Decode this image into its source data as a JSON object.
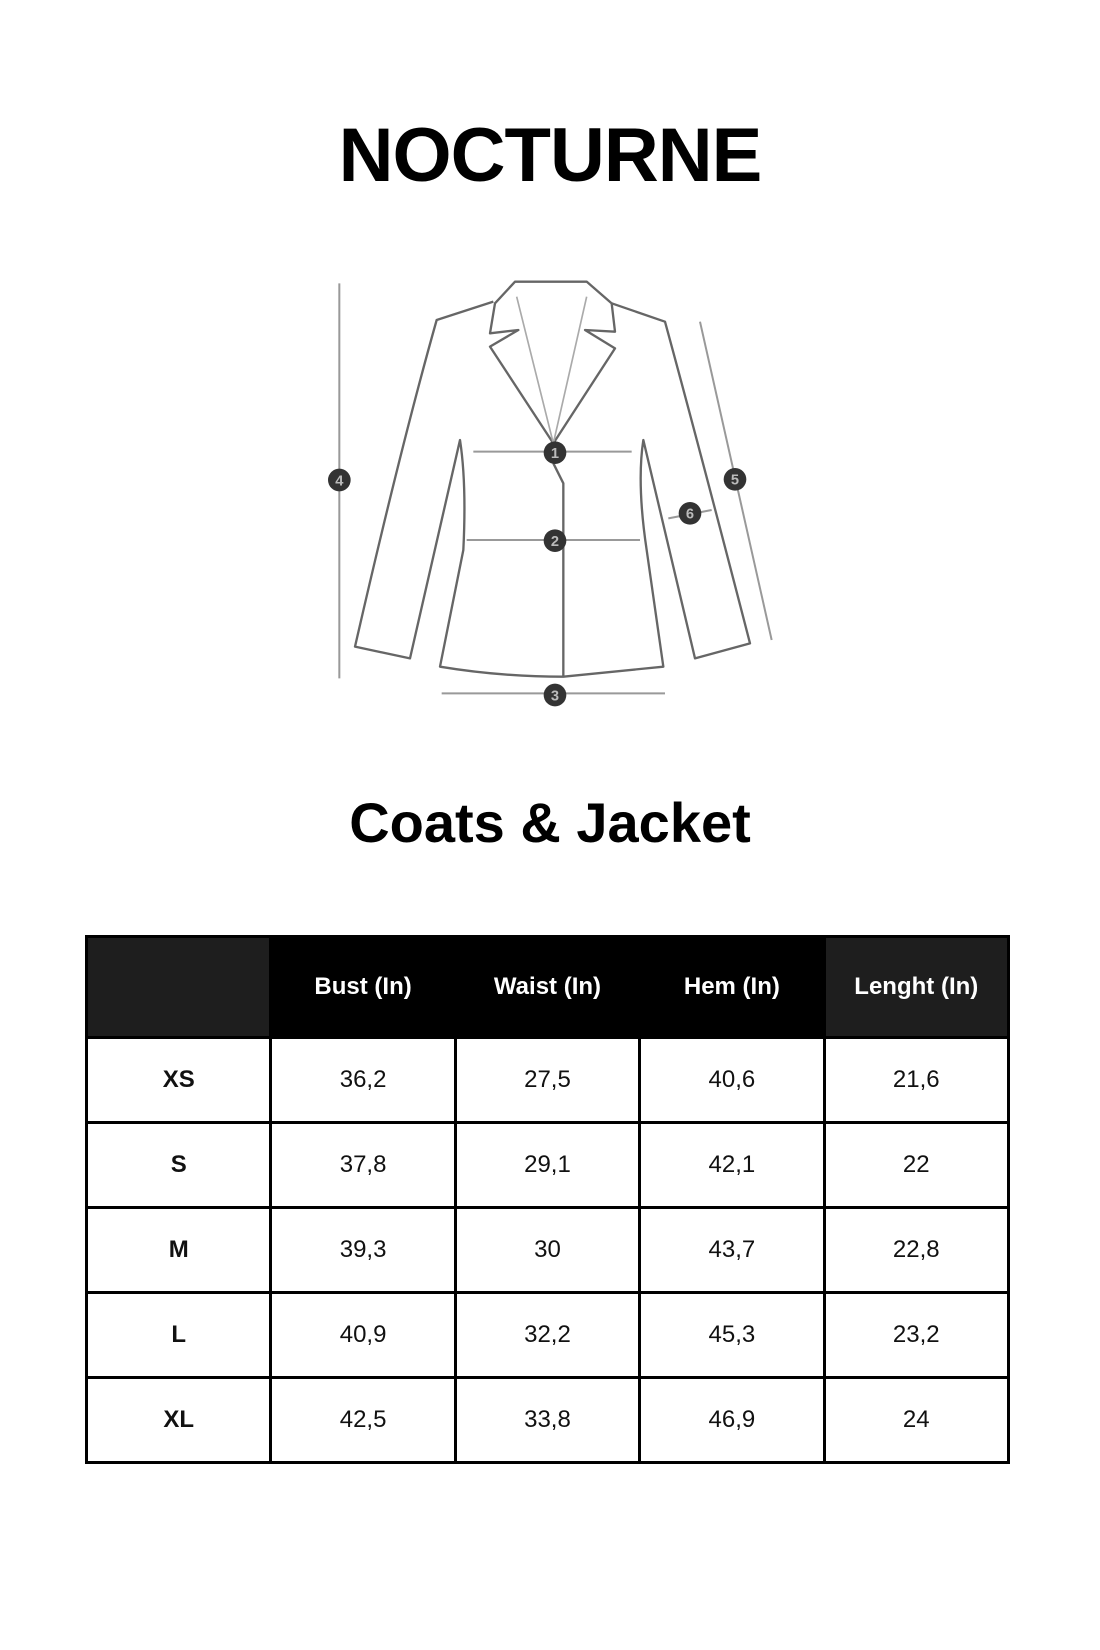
{
  "brand": "NOCTURNE",
  "diagram": {
    "markers": [
      "1",
      "2",
      "3",
      "4",
      "5",
      "6"
    ]
  },
  "title": "Coats & Jacket",
  "table": {
    "headers": [
      "",
      "Bust (In)",
      "Waist (In)",
      "Hem (In)",
      "Lenght (In)"
    ],
    "rows": [
      [
        "XS",
        "36,2",
        "27,5",
        "40,6",
        "21,6"
      ],
      [
        "S",
        "37,8",
        "29,1",
        "42,1",
        "22"
      ],
      [
        "M",
        "39,3",
        "30",
        "43,7",
        "22,8"
      ],
      [
        "L",
        "40,9",
        "32,2",
        "45,3",
        "23,2"
      ],
      [
        "XL",
        "42,5",
        "33,8",
        "46,9",
        "24"
      ]
    ]
  }
}
